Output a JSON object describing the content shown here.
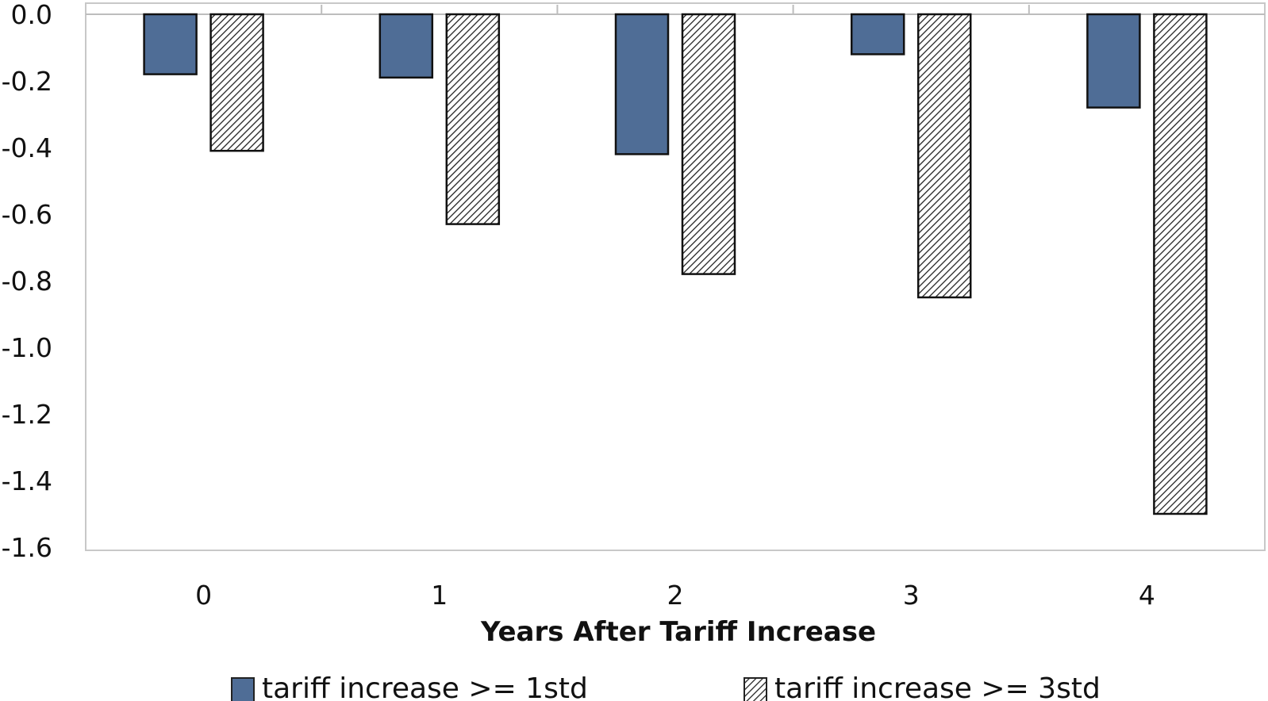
{
  "chart_data": {
    "type": "bar",
    "title": "",
    "xlabel": "Years After Tariff Increase",
    "ylabel": "",
    "categories": [
      "0",
      "1",
      "2",
      "3",
      "4"
    ],
    "series": [
      {
        "name": "tariff increase >= 1std",
        "values": [
          -0.18,
          -0.19,
          -0.42,
          -0.12,
          -0.28
        ],
        "color": "#4f6d96",
        "pattern": "solid"
      },
      {
        "name": "tariff increase >= 3std",
        "values": [
          -0.41,
          -0.63,
          -0.78,
          -0.85,
          -1.5
        ],
        "color": "#ffffff",
        "pattern": "diagonal-hatch"
      }
    ],
    "ylim": [
      -1.6,
      0.0
    ],
    "yticks": [
      "0.0",
      "-0.2",
      "-0.4",
      "-0.6",
      "-0.8",
      "-1.0",
      "-1.2",
      "-1.4",
      "-1.6"
    ],
    "ytick_values": [
      0.0,
      -0.2,
      -0.4,
      -0.6,
      -0.8,
      -1.0,
      -1.2,
      -1.4,
      -1.6
    ],
    "grid": false,
    "legend": {
      "position": "bottom"
    }
  },
  "legend_display": {
    "series_0": "tariff increase >= 1std",
    "series_1": "tariff increase >= 3std"
  }
}
